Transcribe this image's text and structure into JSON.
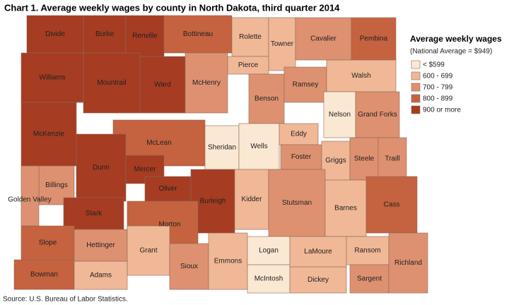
{
  "title": "Chart 1. Average weekly wages by county in North Dakota, third quarter 2014",
  "legend": {
    "title": "Average weekly wages",
    "subtitle": "(National Average = $949)",
    "items": [
      {
        "label": "< $599",
        "color": "#fbe8d3"
      },
      {
        "label": "600 - 699",
        "color": "#f0b896"
      },
      {
        "label": "700 - 799",
        "color": "#de9170"
      },
      {
        "label": "800 - 899",
        "color": "#c5623f"
      },
      {
        "label": "900 or more",
        "color": "#a63c22"
      }
    ]
  },
  "counties": [
    {
      "name": "Divide",
      "color": "#a63c22"
    },
    {
      "name": "Burke",
      "color": "#a63c22"
    },
    {
      "name": "Renville",
      "color": "#a63c22"
    },
    {
      "name": "Bottineau",
      "color": "#c5623f"
    },
    {
      "name": "Rolette",
      "color": "#f0b896"
    },
    {
      "name": "Towner",
      "color": "#f0b896"
    },
    {
      "name": "Cavalier",
      "color": "#de9170"
    },
    {
      "name": "Pembina",
      "color": "#c5623f"
    },
    {
      "name": "Williams",
      "color": "#a63c22"
    },
    {
      "name": "Mountrail",
      "color": "#a63c22"
    },
    {
      "name": "Ward",
      "color": "#a63c22"
    },
    {
      "name": "McHenry",
      "color": "#de9170"
    },
    {
      "name": "Pierce",
      "color": "#f0b896"
    },
    {
      "name": "Benson",
      "color": "#de9170"
    },
    {
      "name": "Ramsey",
      "color": "#de9170"
    },
    {
      "name": "Walsh",
      "color": "#f0b896"
    },
    {
      "name": "Nelson",
      "color": "#fbe8d3"
    },
    {
      "name": "Grand Forks",
      "color": "#de9170"
    },
    {
      "name": "McKenzie",
      "color": "#a63c22"
    },
    {
      "name": "McLean",
      "color": "#c5623f"
    },
    {
      "name": "Sheridan",
      "color": "#fbe8d3"
    },
    {
      "name": "Wells",
      "color": "#fbe8d3"
    },
    {
      "name": "Eddy",
      "color": "#f0b896"
    },
    {
      "name": "Foster",
      "color": "#de9170"
    },
    {
      "name": "Griggs",
      "color": "#f0b896"
    },
    {
      "name": "Steele",
      "color": "#de9170"
    },
    {
      "name": "Traill",
      "color": "#de9170"
    },
    {
      "name": "Dunn",
      "color": "#a63c22"
    },
    {
      "name": "Mercer",
      "color": "#a63c22"
    },
    {
      "name": "Oliver",
      "color": "#a63c22"
    },
    {
      "name": "Billings",
      "color": "#de9170"
    },
    {
      "name": "Golden Valley",
      "color": "#de9170"
    },
    {
      "name": "Stark",
      "color": "#a63c22"
    },
    {
      "name": "Burleigh",
      "color": "#a63c22"
    },
    {
      "name": "Kidder",
      "color": "#f0b896"
    },
    {
      "name": "Stutsman",
      "color": "#de9170"
    },
    {
      "name": "Barnes",
      "color": "#f0b896"
    },
    {
      "name": "Cass",
      "color": "#c5623f"
    },
    {
      "name": "Slope",
      "color": "#c5623f"
    },
    {
      "name": "Hettinger",
      "color": "#de9170"
    },
    {
      "name": "Morton",
      "color": "#c5623f"
    },
    {
      "name": "Grant",
      "color": "#f0b896"
    },
    {
      "name": "Sioux",
      "color": "#de9170"
    },
    {
      "name": "Emmons",
      "color": "#f0b896"
    },
    {
      "name": "Logan",
      "color": "#fbe8d3"
    },
    {
      "name": "McIntosh",
      "color": "#fbe8d3"
    },
    {
      "name": "LaMoure",
      "color": "#f0b896"
    },
    {
      "name": "Dickey",
      "color": "#f0b896"
    },
    {
      "name": "Ransom",
      "color": "#f0b896"
    },
    {
      "name": "Sargent",
      "color": "#de9170"
    },
    {
      "name": "Richland",
      "color": "#de9170"
    },
    {
      "name": "Bowman",
      "color": "#c5623f"
    },
    {
      "name": "Adams",
      "color": "#f0b896"
    }
  ],
  "source": "Source: U.S. Bureau of Labor Statistics."
}
